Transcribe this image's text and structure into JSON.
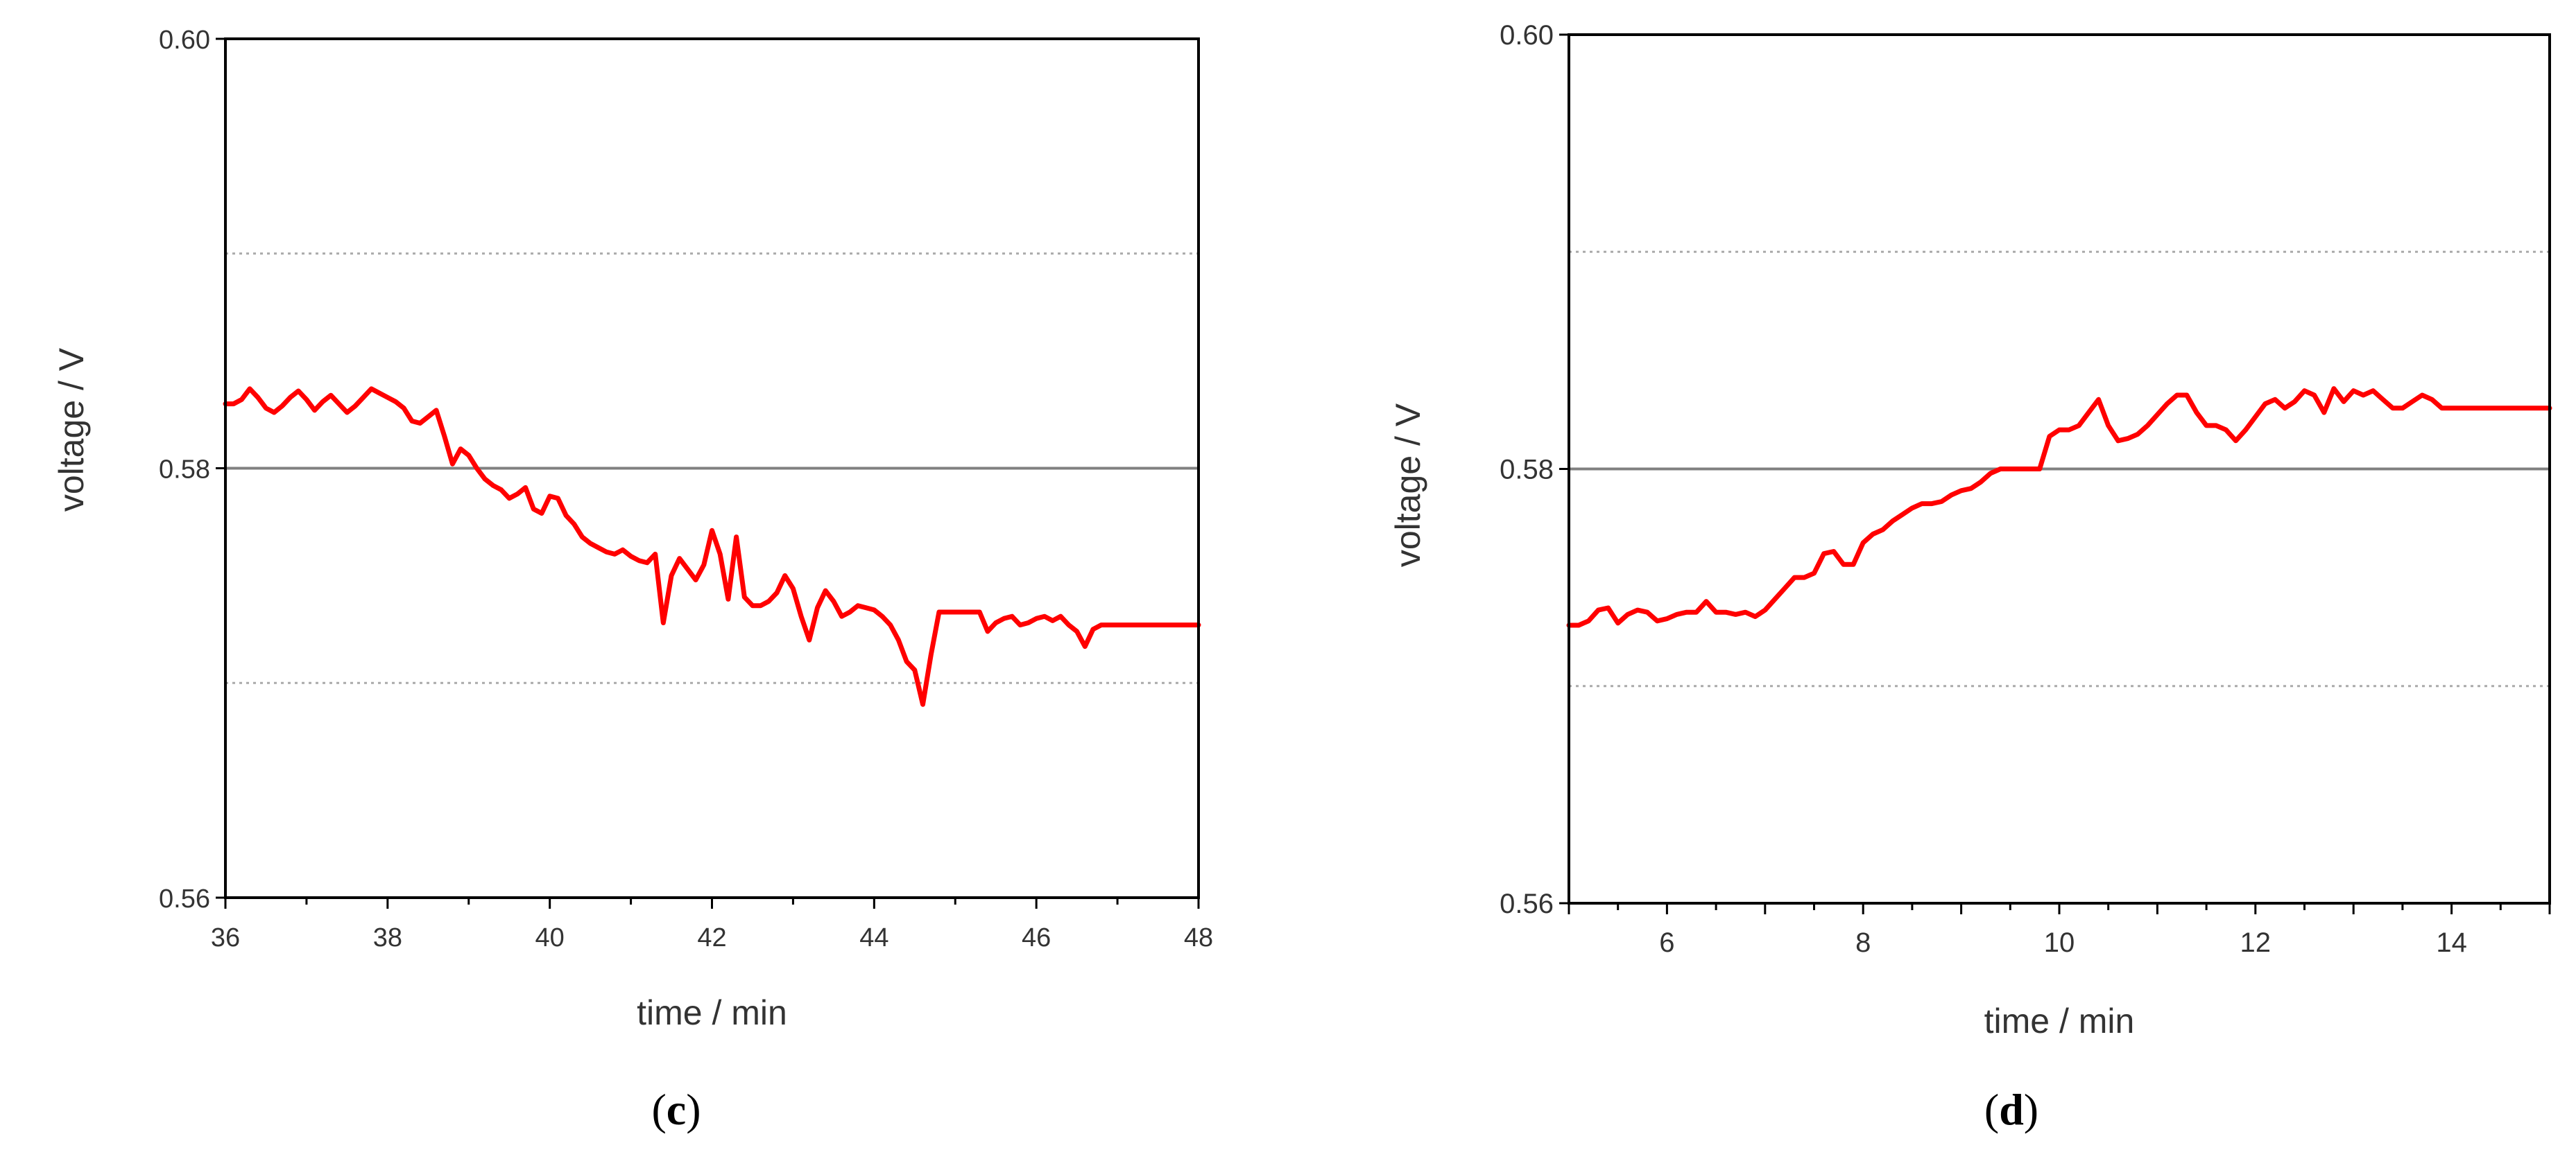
{
  "colors": {
    "series": "#ff0000",
    "axis": "#000000",
    "text": "#333333",
    "ref_line": "#808080",
    "guide_line": "#aaaaaa"
  },
  "chart_data": [
    {
      "type": "line",
      "panel_label": "c",
      "xlabel": "time / min",
      "ylabel": "voltage / V",
      "xlim": [
        36,
        48
      ],
      "ylim": [
        0.56,
        0.6
      ],
      "x_ticks": [
        36,
        38,
        40,
        42,
        44,
        46,
        48
      ],
      "x_tick_labels": [
        "36",
        "38",
        "40",
        "42",
        "44",
        "46",
        "48"
      ],
      "y_ticks": [
        0.56,
        0.58,
        0.6
      ],
      "y_tick_labels": [
        "0.56",
        "0.58",
        "0.60"
      ],
      "reference_lines": [
        {
          "y": 0.59,
          "style": "dotted"
        },
        {
          "y": 0.58,
          "style": "solid"
        },
        {
          "y": 0.57,
          "style": "dotted"
        }
      ],
      "grid": false,
      "series": [
        {
          "x": [
            36.0,
            36.1,
            36.2,
            36.3,
            36.4,
            36.5,
            36.6,
            36.7,
            36.8,
            36.9,
            37.0,
            37.1,
            37.2,
            37.3,
            37.4,
            37.5,
            37.6,
            37.7,
            37.8,
            37.9,
            38.0,
            38.1,
            38.2,
            38.3,
            38.4,
            38.5,
            38.6,
            38.7,
            38.8,
            38.9,
            39.0,
            39.1,
            39.2,
            39.3,
            39.4,
            39.5,
            39.6,
            39.7,
            39.8,
            39.9,
            40.0,
            40.1,
            40.2,
            40.3,
            40.4,
            40.5,
            40.6,
            40.7,
            40.8,
            40.9,
            41.0,
            41.1,
            41.2,
            41.3,
            41.4,
            41.5,
            41.6,
            41.7,
            41.8,
            41.9,
            42.0,
            42.1,
            42.2,
            42.3,
            42.4,
            42.5,
            42.6,
            42.7,
            42.8,
            42.9,
            43.0,
            43.1,
            43.2,
            43.3,
            43.4,
            43.5,
            43.6,
            43.7,
            43.8,
            43.9,
            44.0,
            44.1,
            44.2,
            44.3,
            44.4,
            44.5,
            44.6,
            44.7,
            44.8,
            44.9,
            45.0,
            45.1,
            45.2,
            45.3,
            45.4,
            45.5,
            45.6,
            45.7,
            45.8,
            45.9,
            46.0,
            46.1,
            46.2,
            46.3,
            46.4,
            46.5,
            46.6,
            46.7,
            46.8,
            46.9,
            47.0,
            47.1,
            47.2,
            47.3,
            47.4,
            47.5,
            47.6,
            47.7,
            47.8,
            47.9,
            48.0
          ],
          "y": [
            0.583,
            0.583,
            0.5832,
            0.5837,
            0.5833,
            0.5828,
            0.5826,
            0.5829,
            0.5833,
            0.5836,
            0.5832,
            0.5827,
            0.5831,
            0.5834,
            0.583,
            0.5826,
            0.5829,
            0.5833,
            0.5837,
            0.5835,
            0.5833,
            0.5831,
            0.5828,
            0.5822,
            0.5821,
            0.5824,
            0.5827,
            0.5815,
            0.5802,
            0.5809,
            0.5806,
            0.58,
            0.5795,
            0.5792,
            0.579,
            0.5786,
            0.5788,
            0.5791,
            0.5781,
            0.5779,
            0.5787,
            0.5786,
            0.5778,
            0.5774,
            0.5768,
            0.5765,
            0.5763,
            0.5761,
            0.576,
            0.5762,
            0.5759,
            0.5757,
            0.5756,
            0.576,
            0.5728,
            0.575,
            0.5758,
            0.5753,
            0.5748,
            0.5755,
            0.5771,
            0.576,
            0.5739,
            0.5768,
            0.574,
            0.5736,
            0.5736,
            0.5738,
            0.5742,
            0.575,
            0.5744,
            0.5731,
            0.572,
            0.5735,
            0.5743,
            0.5738,
            0.5731,
            0.5733,
            0.5736,
            0.5735,
            0.5734,
            0.5731,
            0.5727,
            0.572,
            0.571,
            0.5706,
            0.569,
            0.5713,
            0.5733,
            0.5733,
            0.5733,
            0.5733,
            0.5733,
            0.5733,
            0.5724,
            0.5728,
            0.573,
            0.5731,
            0.5727,
            0.5728,
            0.573,
            0.5731,
            0.5729,
            0.5731,
            0.5727,
            0.5724,
            0.5717,
            0.5725,
            0.5727,
            0.5727,
            0.5727,
            0.5727,
            0.5727,
            0.5727,
            0.5727,
            0.5727,
            0.5727,
            0.5727,
            0.5727,
            0.5727,
            0.5727
          ]
        }
      ]
    },
    {
      "type": "line",
      "panel_label": "d",
      "xlabel": "time / min",
      "ylabel": "voltage / V",
      "xlim": [
        5,
        15
      ],
      "ylim": [
        0.56,
        0.6
      ],
      "x_ticks": [
        5,
        6,
        7,
        8,
        9,
        10,
        11,
        12,
        13,
        14,
        15
      ],
      "x_tick_labels": [
        "",
        "6",
        "",
        "8",
        "",
        "10",
        "",
        "12",
        "",
        "14",
        ""
      ],
      "y_ticks": [
        0.56,
        0.58,
        0.6
      ],
      "y_tick_labels": [
        "0.56",
        "0.58",
        "0.60"
      ],
      "reference_lines": [
        {
          "y": 0.59,
          "style": "dotted"
        },
        {
          "y": 0.58,
          "style": "solid"
        },
        {
          "y": 0.57,
          "style": "dotted"
        }
      ],
      "grid": false,
      "series": [
        {
          "x": [
            5.0,
            5.1,
            5.2,
            5.3,
            5.4,
            5.5,
            5.6,
            5.7,
            5.8,
            5.9,
            6.0,
            6.1,
            6.2,
            6.3,
            6.4,
            6.5,
            6.6,
            6.7,
            6.8,
            6.9,
            7.0,
            7.1,
            7.2,
            7.3,
            7.4,
            7.5,
            7.6,
            7.7,
            7.8,
            7.9,
            8.0,
            8.1,
            8.2,
            8.3,
            8.4,
            8.5,
            8.6,
            8.7,
            8.8,
            8.9,
            9.0,
            9.1,
            9.2,
            9.3,
            9.4,
            9.5,
            9.6,
            9.7,
            9.8,
            9.9,
            10.0,
            10.1,
            10.2,
            10.3,
            10.4,
            10.5,
            10.6,
            10.7,
            10.8,
            10.9,
            11.0,
            11.1,
            11.2,
            11.3,
            11.4,
            11.5,
            11.6,
            11.7,
            11.8,
            11.9,
            12.0,
            12.1,
            12.2,
            12.3,
            12.4,
            12.5,
            12.6,
            12.7,
            12.8,
            12.9,
            13.0,
            13.1,
            13.2,
            13.3,
            13.4,
            13.5,
            13.6,
            13.7,
            13.8,
            13.9,
            14.0,
            14.1,
            14.2,
            14.3,
            14.4,
            14.5,
            14.6,
            14.7,
            14.8,
            14.9,
            15.0
          ],
          "y": [
            0.5728,
            0.5728,
            0.573,
            0.5735,
            0.5736,
            0.5729,
            0.5733,
            0.5735,
            0.5734,
            0.573,
            0.5731,
            0.5733,
            0.5734,
            0.5734,
            0.5739,
            0.5734,
            0.5734,
            0.5733,
            0.5734,
            0.5732,
            0.5735,
            0.574,
            0.5745,
            0.575,
            0.575,
            0.5752,
            0.5761,
            0.5762,
            0.5756,
            0.5756,
            0.5766,
            0.577,
            0.5772,
            0.5776,
            0.5779,
            0.5782,
            0.5784,
            0.5784,
            0.5785,
            0.5788,
            0.579,
            0.5791,
            0.5794,
            0.5798,
            0.58,
            0.58,
            0.58,
            0.58,
            0.58,
            0.5815,
            0.5818,
            0.5818,
            0.582,
            0.5826,
            0.5832,
            0.582,
            0.5813,
            0.5814,
            0.5816,
            0.582,
            0.5825,
            0.583,
            0.5834,
            0.5834,
            0.5826,
            0.582,
            0.582,
            0.5818,
            0.5813,
            0.5818,
            0.5824,
            0.583,
            0.5832,
            0.5828,
            0.5831,
            0.5836,
            0.5834,
            0.5826,
            0.5837,
            0.5831,
            0.5836,
            0.5834,
            0.5836,
            0.5832,
            0.5828,
            0.5828,
            0.5831,
            0.5834,
            0.5832,
            0.5828,
            0.5828,
            0.5828,
            0.5828,
            0.5828,
            0.5828,
            0.5828,
            0.5828,
            0.5828,
            0.5828,
            0.5828,
            0.5828
          ]
        }
      ]
    }
  ]
}
